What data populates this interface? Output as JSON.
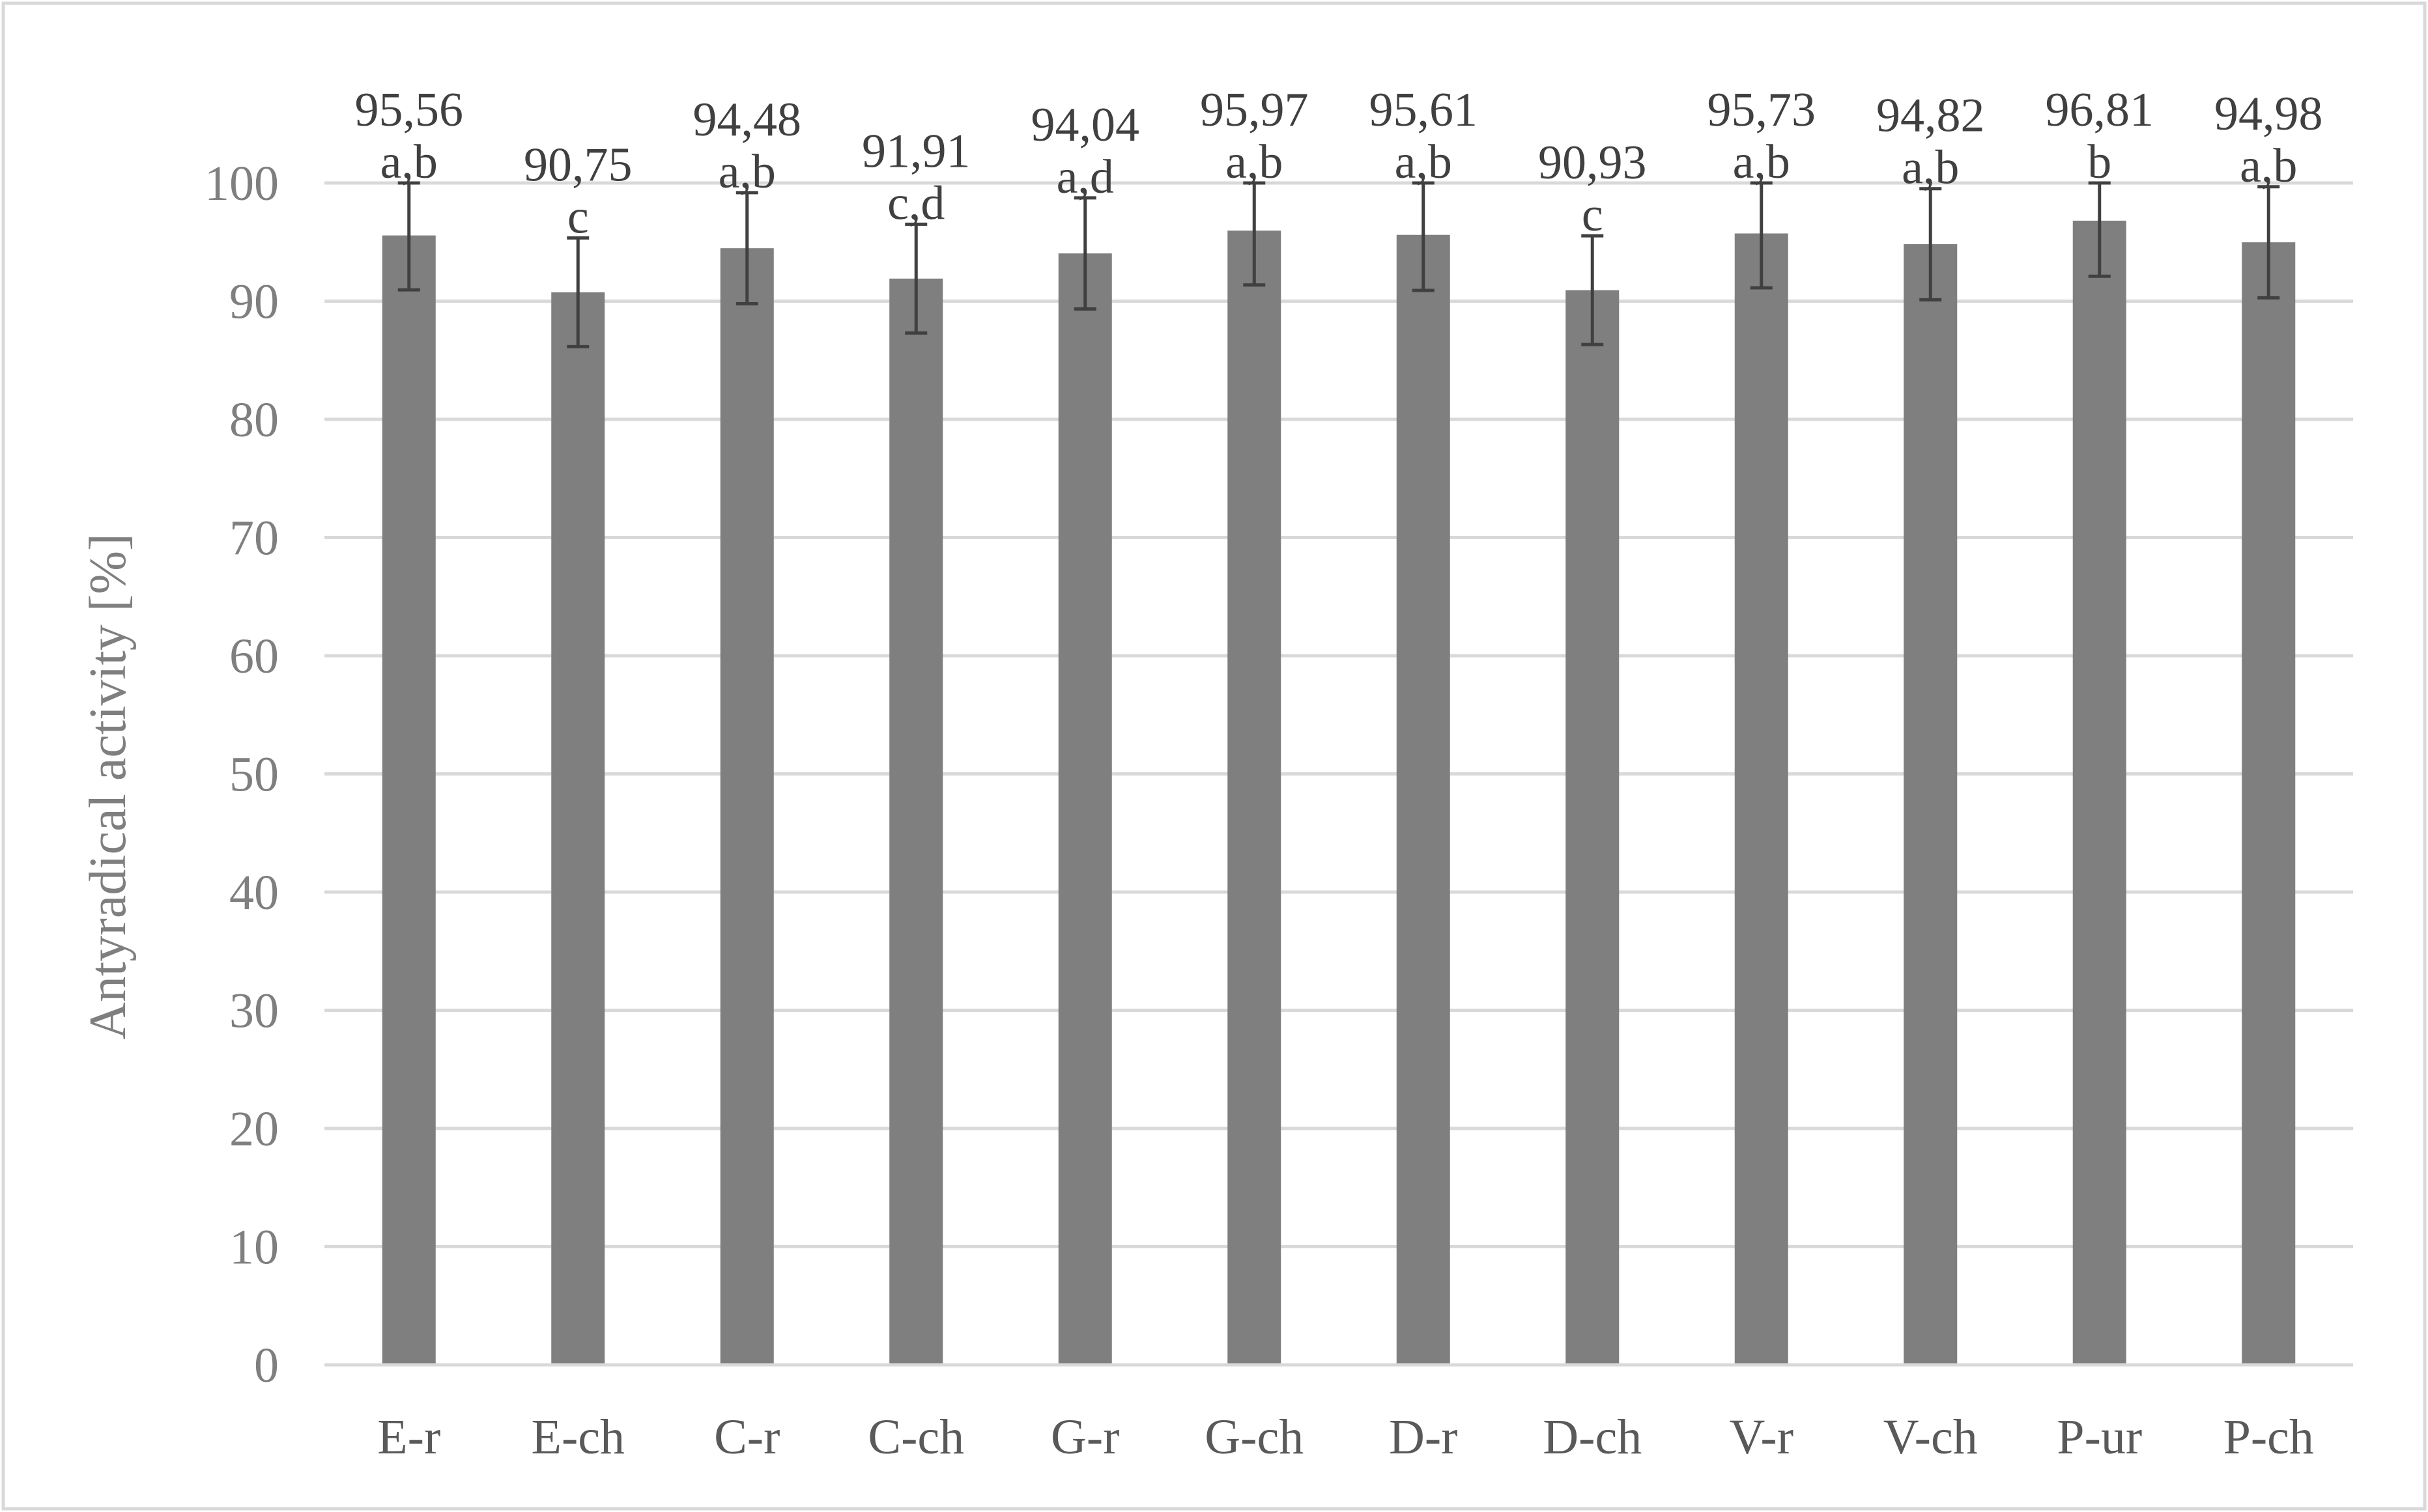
{
  "chart_data": {
    "type": "bar",
    "title": "",
    "xlabel": "",
    "ylabel": "Antyradical activity [%]",
    "ylim": [
      0,
      100
    ],
    "yticks": [
      0,
      10,
      20,
      30,
      40,
      50,
      60,
      70,
      80,
      90,
      100
    ],
    "grid": "horizontal",
    "legend": "none",
    "categories": [
      "E-r",
      "E-ch",
      "C-r",
      "C-ch",
      "G-r",
      "G-ch",
      "D-r",
      "D-ch",
      "V-r",
      "V-ch",
      "P-ur",
      "P-ch"
    ],
    "series": [
      {
        "values": [
          95.56,
          90.75,
          94.48,
          91.91,
          94.04,
          95.97,
          95.61,
          90.93,
          95.73,
          94.82,
          96.81,
          94.98
        ],
        "value_labels": [
          "95,56",
          "90,75",
          "94,48",
          "91,91",
          "94,04",
          "95,97",
          "95,61",
          "90,93",
          "95,73",
          "94,82",
          "96,81",
          "94,98"
        ],
        "significance_letters": [
          "a,b",
          "c",
          "a,b",
          "c,d",
          "a,d",
          "a,b",
          "a,b",
          "c",
          "a,b",
          "a,b",
          "b",
          "a,b"
        ],
        "error": [
          4.6,
          4.6,
          4.7,
          4.6,
          4.7,
          4.6,
          4.7,
          4.6,
          4.6,
          4.7,
          4.7,
          4.7
        ],
        "color": "#7f7f7f"
      }
    ],
    "colors": {
      "bar": "#7f7f7f",
      "error_bar": "#404040",
      "grid": "#d9d9d9",
      "frame": "#d9d9d9"
    }
  }
}
